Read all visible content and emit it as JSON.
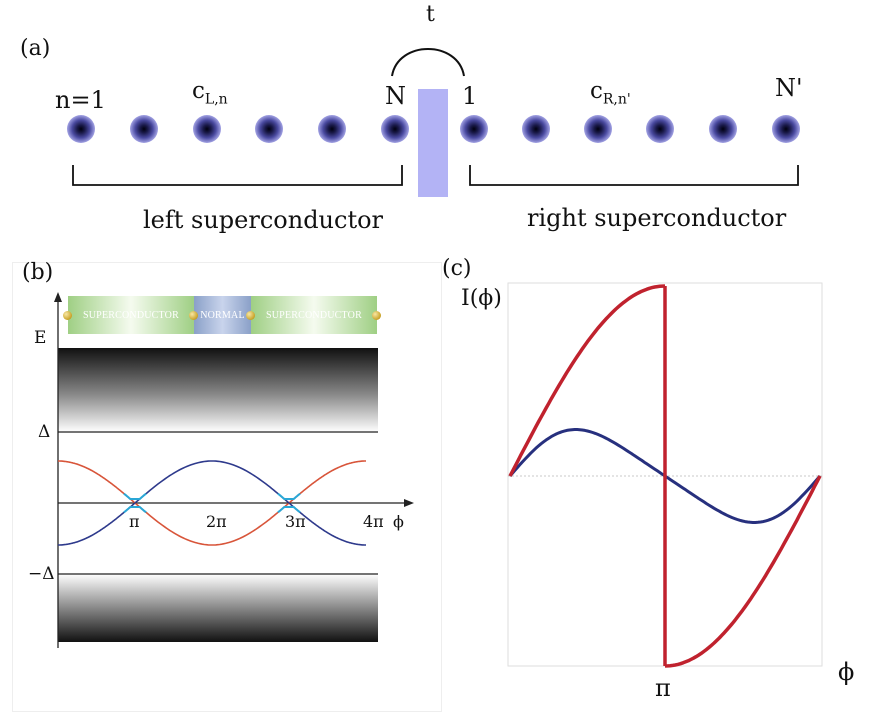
{
  "panel_a": {
    "tag": "(a)",
    "hopping_label": "t",
    "left_first_site": "n=1",
    "left_operator_base": "c",
    "left_operator_sub": "L,n",
    "left_last_site": "N",
    "right_first_site": "1",
    "right_operator_base": "c",
    "right_operator_sub": "R,n'",
    "right_last_site": "N'",
    "left_caption": "left superconductor",
    "right_caption": "right superconductor",
    "left_site_count": 6,
    "right_site_count": 6,
    "barrier_color": "#b3b3f5"
  },
  "panel_b": {
    "tag": "(b)",
    "box_labels": [
      "SUPERCONDUCTOR",
      "NORMAL",
      "SUPERCONDUCTOR"
    ],
    "y_axis_label": "E",
    "gap_top_label": "Δ",
    "gap_bottom_label": "−Δ",
    "x_axis_label": "ϕ",
    "x_ticks": [
      "π",
      "2π",
      "3π",
      "4π"
    ],
    "curve_colors": {
      "red": "#d8553a",
      "blue": "#2e3a8c",
      "crossing": "#2aa7d6"
    }
  },
  "panel_c": {
    "tag": "(c)",
    "y_axis_label": "I(ϕ)",
    "x_axis_label": "ϕ",
    "x_tick": "π",
    "curve_colors": {
      "red": "#c0222e",
      "blue": "#27307e"
    }
  }
}
